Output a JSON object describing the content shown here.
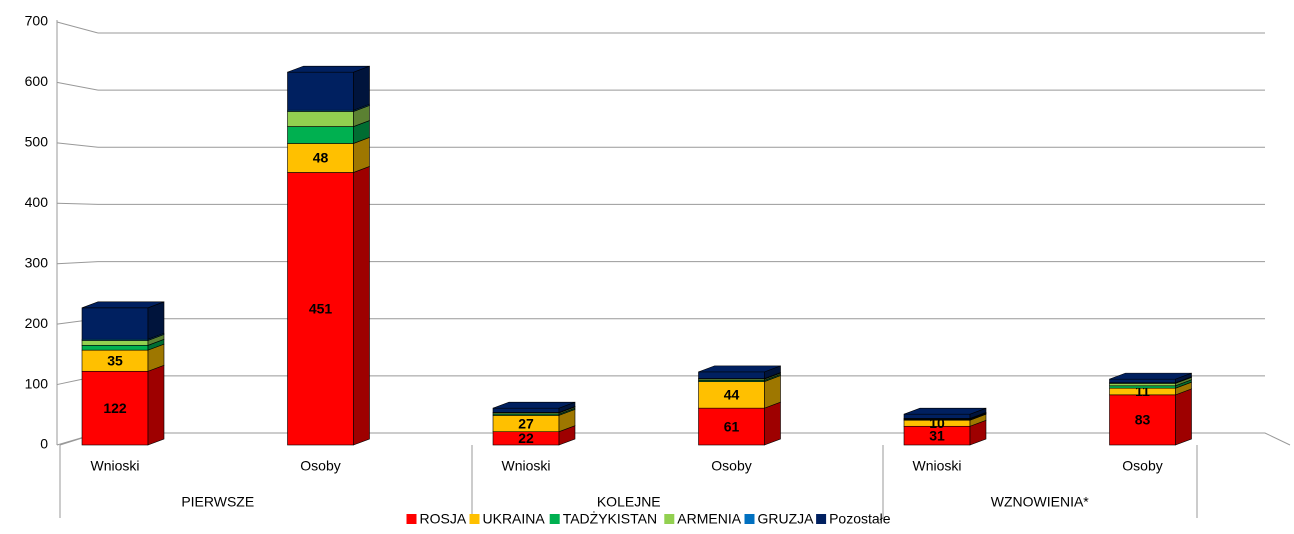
{
  "chart_data": {
    "type": "stacked_bar_3d",
    "categories": [
      "Wnioski",
      "Osoby",
      "Wnioski",
      "Osoby",
      "Wnioski",
      "Osoby"
    ],
    "groups": [
      "PIERWSZE",
      "KOLEJNE",
      "WZNOWIENIA*"
    ],
    "series": [
      {
        "name": "ROSJA",
        "color": "#ff0000",
        "data_labels": true,
        "values": [
          122,
          451,
          22,
          61,
          31,
          83
        ]
      },
      {
        "name": "UKRAINA",
        "color": "#ffc000",
        "data_labels": true,
        "values": [
          35,
          48,
          27,
          44,
          10,
          11
        ]
      },
      {
        "name": "TADŻYKISTAN",
        "color": "#00b050",
        "data_labels": false,
        "values": [
          8,
          28,
          2,
          2,
          1,
          4
        ]
      },
      {
        "name": "ARMENIA",
        "color": "#92d050",
        "data_labels": false,
        "values": [
          8,
          25,
          2,
          2,
          1,
          4
        ]
      },
      {
        "name": "GRUZJA",
        "color": "#0070c0",
        "data_labels": false,
        "values": [
          2,
          2,
          1,
          1,
          1,
          1
        ]
      },
      {
        "name": "Pozostałe",
        "color": "#002060",
        "data_labels": false,
        "values": [
          52,
          63,
          7,
          11,
          7,
          6
        ]
      }
    ],
    "ylim": [
      0,
      700
    ],
    "yticks": [
      0,
      100,
      200,
      300,
      400,
      500,
      600,
      700
    ],
    "grid": true,
    "legend": "bottom"
  }
}
